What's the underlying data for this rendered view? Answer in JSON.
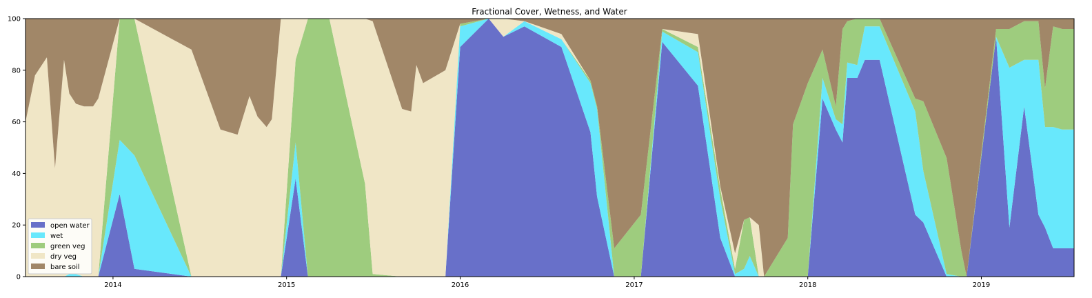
{
  "chart_data": {
    "type": "area",
    "stacked": true,
    "title": "Fractional Cover, Wetness, and Water",
    "xlabel": "",
    "ylabel": "",
    "xlim": [
      "2013-07-01",
      "2019-07-15"
    ],
    "ylim": [
      0,
      100
    ],
    "xtick_labels": [
      "2014",
      "2015",
      "2016",
      "2017",
      "2018",
      "2019"
    ],
    "ytick_labels": [
      "0",
      "20",
      "40",
      "60",
      "80",
      "100"
    ],
    "legend_position": "lower-left",
    "x": [
      "2013-07-01",
      "2013-07-21",
      "2013-08-15",
      "2013-09-01",
      "2013-09-20",
      "2013-10-01",
      "2013-10-15",
      "2013-11-01",
      "2013-11-20",
      "2013-12-01",
      "2014-01-15",
      "2014-02-15",
      "2014-06-15",
      "2014-08-15",
      "2014-09-20",
      "2014-10-15",
      "2014-11-01",
      "2014-11-20",
      "2014-12-01",
      "2014-12-20",
      "2015-01-20",
      "2015-02-15",
      "2015-04-01",
      "2015-06-15",
      "2015-07-01",
      "2015-09-01",
      "2015-09-20",
      "2015-10-01",
      "2015-10-15",
      "2015-12-01",
      "2016-01-01",
      "2016-03-01",
      "2016-04-01",
      "2016-05-15",
      "2016-08-01",
      "2016-10-01",
      "2016-10-15",
      "2016-11-20",
      "2017-01-15",
      "2017-03-01",
      "2017-05-15",
      "2017-07-01",
      "2017-08-01",
      "2017-08-20",
      "2017-09-01",
      "2017-09-20",
      "2017-10-01",
      "2017-11-20",
      "2017-12-01",
      "2018-01-01",
      "2018-02-01",
      "2018-03-01",
      "2018-03-15",
      "2018-03-25",
      "2018-04-15",
      "2018-05-01",
      "2018-06-01",
      "2018-08-15",
      "2018-09-01",
      "2018-10-20",
      "2018-11-20",
      "2018-12-01",
      "2019-02-01",
      "2019-03-01",
      "2019-04-01",
      "2019-05-01",
      "2019-05-15",
      "2019-06-01",
      "2019-06-20",
      "2019-07-15"
    ],
    "series": [
      {
        "name": "open water",
        "color": "#6870c9",
        "values": [
          0,
          0,
          0,
          0,
          0,
          0,
          0,
          0,
          0,
          0,
          32,
          3,
          0,
          0,
          0,
          0,
          0,
          0,
          0,
          0,
          38,
          0,
          0,
          0,
          0,
          0,
          0,
          0,
          0,
          0,
          89,
          100,
          93,
          97,
          89,
          56,
          31,
          0,
          0,
          91,
          74,
          15,
          0,
          0,
          0,
          0,
          0,
          0,
          0,
          0,
          69,
          57,
          52,
          77,
          77,
          84,
          84,
          24,
          21,
          0,
          0,
          0,
          93,
          19,
          66,
          24,
          19,
          11,
          11,
          11
        ]
      },
      {
        "name": "wet",
        "color": "#68e8fc",
        "values": [
          0,
          0,
          0,
          0,
          0,
          1,
          1,
          0,
          0,
          0,
          21,
          44,
          0,
          0,
          0,
          0,
          0,
          0,
          0,
          0,
          14,
          0,
          0,
          0,
          0,
          0,
          0,
          0,
          0,
          0,
          8,
          0,
          0,
          2,
          3,
          19,
          34,
          0,
          0,
          4,
          13,
          15,
          1,
          3,
          8,
          0,
          0,
          0,
          0,
          0,
          8,
          4,
          7,
          6,
          5,
          13,
          13,
          40,
          20,
          1,
          0,
          0,
          0,
          62,
          18,
          60,
          39,
          47,
          46,
          46
        ]
      },
      {
        "name": "green veg",
        "color": "#9ecc7e",
        "values": [
          0,
          0,
          0,
          0,
          0,
          0,
          0,
          0,
          0,
          0,
          47,
          53,
          0,
          0,
          0,
          0,
          0,
          0,
          0,
          0,
          32,
          100,
          100,
          36,
          1,
          0,
          0,
          0,
          0,
          0,
          1,
          0,
          0,
          0,
          0,
          1,
          1,
          11,
          24,
          1,
          2,
          4,
          2,
          19,
          15,
          0,
          0,
          15,
          59,
          75,
          11,
          5,
          37,
          16,
          18,
          3,
          3,
          5,
          27,
          45,
          10,
          0,
          3,
          15,
          15,
          15,
          15,
          39,
          39,
          39
        ]
      },
      {
        "name": "dry veg",
        "color": "#f0e6c6",
        "values": [
          60,
          78,
          85,
          42,
          84,
          70,
          66,
          66,
          66,
          69,
          0,
          0,
          88,
          57,
          55,
          70,
          62,
          58,
          61,
          100,
          16,
          0,
          0,
          64,
          98,
          65,
          64,
          82,
          75,
          80,
          0,
          0,
          7,
          0,
          2,
          0,
          0,
          0,
          0,
          0,
          5,
          1,
          6,
          0,
          0,
          20,
          0,
          0,
          0,
          0,
          0,
          0,
          0,
          0,
          0,
          0,
          0,
          0,
          0,
          0,
          0,
          0,
          0,
          0,
          0,
          0,
          0,
          0,
          0,
          0
        ]
      },
      {
        "name": "bare soil",
        "color": "#a18768",
        "values": [
          40,
          22,
          15,
          58,
          16,
          29,
          33,
          34,
          34,
          31,
          0,
          0,
          12,
          43,
          45,
          30,
          38,
          42,
          39,
          0,
          0,
          0,
          0,
          0,
          1,
          35,
          36,
          18,
          25,
          20,
          2,
          0,
          0,
          1,
          6,
          24,
          34,
          89,
          76,
          4,
          6,
          65,
          91,
          78,
          77,
          80,
          100,
          85,
          41,
          25,
          12,
          34,
          4,
          1,
          0,
          0,
          0,
          31,
          32,
          54,
          90,
          100,
          4,
          4,
          1,
          1,
          27,
          3,
          4,
          4
        ]
      }
    ]
  }
}
